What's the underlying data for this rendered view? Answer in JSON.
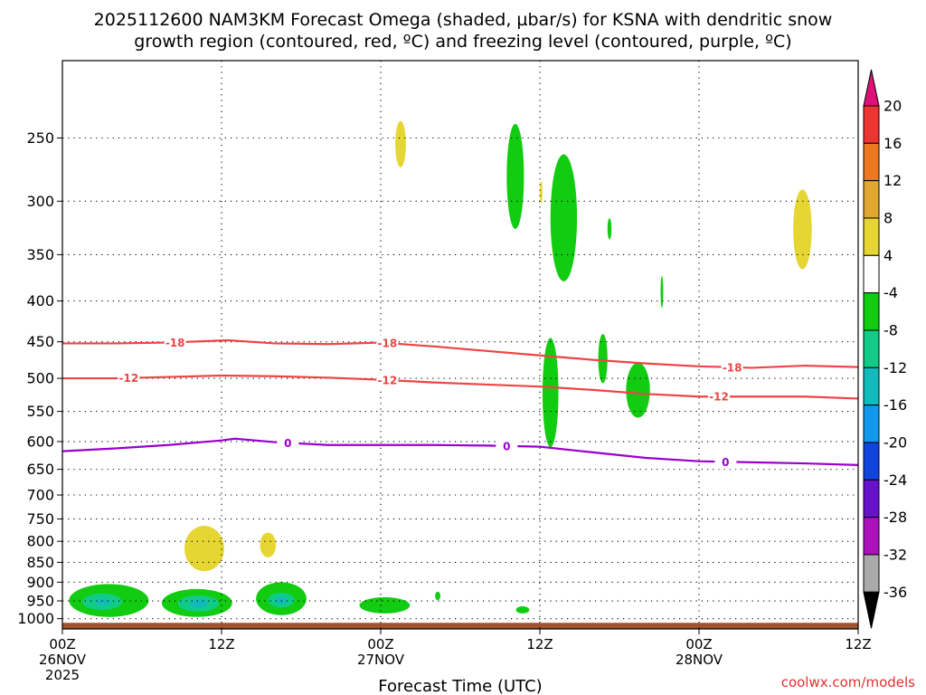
{
  "title": {
    "line1": "2025112600 NAM3KM Forecast Omega (shaded, µbar/s) for KSNA with dendritic snow",
    "line2": "growth region (contoured, red, ºC) and freezing level (contoured, purple, ºC)"
  },
  "credit": "coolwx.com/models",
  "colors": {
    "dendritic": "#ee4444",
    "freezing": "#9900cc",
    "ground": "#a0522d",
    "grid": "#000000"
  },
  "chart_data": {
    "type": "heatmap",
    "xlabel": "Forecast Time (UTC)",
    "ylabel": "",
    "xlim": [
      0,
      60
    ],
    "x_ticks": [
      {
        "hour": 0,
        "label": "00Z",
        "date": "26NOV",
        "year": "2025"
      },
      {
        "hour": 12,
        "label": "12Z",
        "date": "",
        "year": ""
      },
      {
        "hour": 24,
        "label": "00Z",
        "date": "27NOV",
        "year": ""
      },
      {
        "hour": 36,
        "label": "12Z",
        "date": "",
        "year": ""
      },
      {
        "hour": 48,
        "label": "00Z",
        "date": "28NOV",
        "year": ""
      },
      {
        "hour": 60,
        "label": "12Z",
        "date": "",
        "year": ""
      }
    ],
    "y_scale": "log-pressure",
    "ylim_hpa": [
      1030,
      200
    ],
    "pressure_levels": [
      250,
      300,
      350,
      400,
      450,
      500,
      550,
      600,
      650,
      700,
      750,
      800,
      850,
      900,
      950,
      1000
    ],
    "grid": true,
    "colorbar": {
      "units": "µbar/s",
      "labels": [
        "20",
        "16",
        "12",
        "8",
        "4",
        "-4",
        "-8",
        "-12",
        "-16",
        "-20",
        "-24",
        "-28",
        "-32",
        "-36"
      ],
      "classes": [
        {
          "range": ">20",
          "color": "#dd1177"
        },
        {
          "range": "16 to 20",
          "color": "#ee3333"
        },
        {
          "range": "12 to 16",
          "color": "#ee7722"
        },
        {
          "range": "8 to 12",
          "color": "#e0a830"
        },
        {
          "range": "4 to 8",
          "color": "#e6d632"
        },
        {
          "range": "-4 to 4",
          "color": "#ffffff"
        },
        {
          "range": "-8 to -4",
          "color": "#11cc11"
        },
        {
          "range": "-12 to -8",
          "color": "#11cc88"
        },
        {
          "range": "-16 to -12",
          "color": "#11bbbb"
        },
        {
          "range": "-20 to -16",
          "color": "#1199ee"
        },
        {
          "range": "-24 to -20",
          "color": "#1144dd"
        },
        {
          "range": "-28 to -24",
          "color": "#6611cc"
        },
        {
          "range": "-32 to -28",
          "color": "#aa11bb"
        },
        {
          "range": "-36 to -32",
          "color": "#aaaaaa"
        },
        {
          "range": "<-36",
          "color": "#000000"
        }
      ]
    },
    "contours": [
      {
        "label": "-18",
        "color": "#ee4444",
        "hours": [
          0,
          4,
          8,
          12.5,
          16,
          20,
          24,
          28,
          32,
          36,
          40,
          44,
          48,
          52,
          56,
          60
        ],
        "pressure": [
          452,
          452,
          451,
          448,
          452,
          453,
          451,
          456,
          462,
          468,
          474,
          479,
          483,
          485,
          482,
          484
        ],
        "label_hours": [
          8.5,
          24.5,
          50.5
        ]
      },
      {
        "label": "-12",
        "color": "#ee4444",
        "hours": [
          0,
          4,
          8,
          12,
          16,
          20,
          24,
          28,
          32,
          36,
          40,
          44,
          48,
          52,
          56,
          60
        ],
        "pressure": [
          500,
          500,
          498,
          496,
          497,
          499,
          502,
          506,
          509,
          512,
          517,
          523,
          527,
          527,
          527,
          530
        ],
        "label_hours": [
          5,
          24.5,
          49.5
        ]
      },
      {
        "label": "0",
        "color": "#9900cc",
        "hours": [
          0,
          4,
          8,
          12,
          13,
          16,
          20,
          24,
          28,
          32,
          36,
          40,
          44,
          48,
          52,
          56,
          60
        ],
        "pressure": [
          617,
          612,
          606,
          598,
          595,
          601,
          606,
          606,
          606,
          607,
          609,
          619,
          629,
          635,
          637,
          639,
          642
        ],
        "label_hours": [
          17,
          33.5,
          50
        ]
      }
    ],
    "shaded_regions": [
      {
        "class": "4 to 8",
        "hours": [
          25.1,
          25.9
        ],
        "pressure": [
          238,
          272
        ]
      },
      {
        "class": "-8 to -4",
        "hours": [
          33.5,
          34.8
        ],
        "pressure": [
          240,
          325
        ]
      },
      {
        "class": "4 to 8",
        "hours": [
          36,
          36.2
        ],
        "pressure": [
          283,
          302
        ]
      },
      {
        "class": "-8 to -4",
        "hours": [
          36.8,
          38.8
        ],
        "pressure": [
          262,
          378
        ]
      },
      {
        "class": "-8 to -4",
        "hours": [
          41.1,
          41.4
        ],
        "pressure": [
          315,
          335
        ]
      },
      {
        "class": "-8 to -4",
        "hours": [
          45.1,
          45.3
        ],
        "pressure": [
          372,
          408
        ]
      },
      {
        "class": "4 to 8",
        "hours": [
          55.1,
          56.5
        ],
        "pressure": [
          290,
          365
        ]
      },
      {
        "class": "-8 to -4",
        "hours": [
          36.2,
          37.4
        ],
        "pressure": [
          445,
          610
        ]
      },
      {
        "class": "-8 to -4",
        "hours": [
          40.4,
          41.1
        ],
        "pressure": [
          440,
          507
        ]
      },
      {
        "class": "-8 to -4",
        "hours": [
          42.5,
          44.3
        ],
        "pressure": [
          478,
          560
        ]
      },
      {
        "class": "4 to 8",
        "hours": [
          9.2,
          12.2
        ],
        "pressure": [
          765,
          872
        ]
      },
      {
        "class": "4 to 8",
        "hours": [
          14.9,
          16.1
        ],
        "pressure": [
          780,
          838
        ]
      },
      {
        "class": "-8 to -4",
        "hours": [
          0.5,
          6.5
        ],
        "pressure": [
          905,
          995
        ]
      },
      {
        "class": "-12 to -8",
        "hours": [
          1.5,
          4.5
        ],
        "pressure": [
          930,
          975
        ]
      },
      {
        "class": "-16 to -12",
        "hours": [
          2.5,
          3.6
        ],
        "pressure": [
          943,
          962
        ]
      },
      {
        "class": "-8 to -4",
        "hours": [
          7.5,
          12.8
        ],
        "pressure": [
          918,
          995
        ]
      },
      {
        "class": "-12 to -8",
        "hours": [
          8.7,
          11.8
        ],
        "pressure": [
          935,
          980
        ]
      },
      {
        "class": "-16 to -12",
        "hours": [
          9.6,
          11
        ],
        "pressure": [
          945,
          968
        ]
      },
      {
        "class": "-8 to -4",
        "hours": [
          14.6,
          18.4
        ],
        "pressure": [
          900,
          990
        ]
      },
      {
        "class": "-12 to -8",
        "hours": [
          15.5,
          17.5
        ],
        "pressure": [
          928,
          968
        ]
      },
      {
        "class": "-16 to -12",
        "hours": [
          16,
          17
        ],
        "pressure": [
          940,
          958
        ]
      },
      {
        "class": "-8 to -4",
        "hours": [
          22.4,
          26.2
        ],
        "pressure": [
          940,
          985
        ]
      },
      {
        "class": "-8 to -4",
        "hours": [
          28.1,
          28.5
        ],
        "pressure": [
          925,
          948
        ]
      },
      {
        "class": "-8 to -4",
        "hours": [
          34.2,
          35.2
        ],
        "pressure": [
          965,
          985
        ]
      }
    ],
    "surface": {
      "color": "#a0522d",
      "pressure": [
        1012,
        1030
      ]
    }
  }
}
